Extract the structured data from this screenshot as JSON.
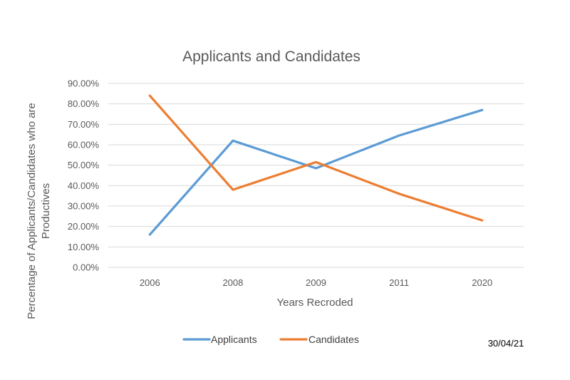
{
  "chart_data": {
    "type": "line",
    "title": "Applicants and Candidates",
    "xlabel": "Years Recroded",
    "ylabel_lines": [
      "Percentage of Applicants/Candidates who are",
      "Productives"
    ],
    "categories": [
      "2006",
      "2008",
      "2009",
      "2011",
      "2020"
    ],
    "ylim": [
      0,
      90
    ],
    "yticks": [
      0,
      10,
      20,
      30,
      40,
      50,
      60,
      70,
      80,
      90
    ],
    "ytick_labels": [
      "0.00%",
      "10.00%",
      "20.00%",
      "30.00%",
      "40.00%",
      "50.00%",
      "60.00%",
      "70.00%",
      "80.00%",
      "90.00%"
    ],
    "grid": true,
    "legend_position": "bottom",
    "series": [
      {
        "name": "Applicants",
        "values": [
          16,
          62,
          48.5,
          64.5,
          77
        ],
        "color": "#5b9bd5"
      },
      {
        "name": "Candidates",
        "values": [
          84,
          38,
          51.5,
          36,
          23
        ],
        "color": "#ed7d31"
      }
    ]
  },
  "note": "30/04/21"
}
